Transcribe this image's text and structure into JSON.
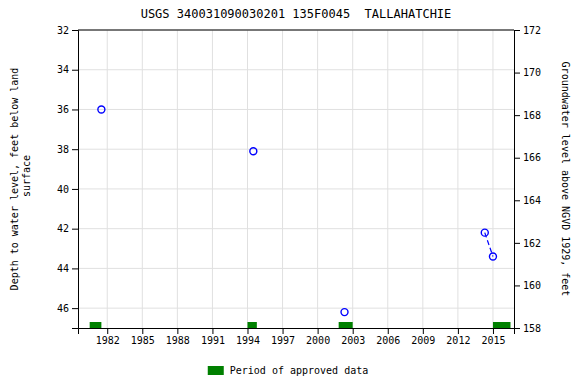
{
  "chart_data": {
    "type": "scatter",
    "title": "USGS 340031090030201 135F0045  TALLAHATCHIE",
    "y_label": "Depth to water level, feet below land\n surface",
    "y2_label": "Groundwater level above NGVD 1929, feet",
    "xlim": [
      1979.5,
      2016.8
    ],
    "xticks": [
      1982,
      1985,
      1988,
      1991,
      1994,
      1997,
      2000,
      2003,
      2006,
      2009,
      2012,
      2015
    ],
    "ylim": [
      47,
      32
    ],
    "yticks": [
      32,
      34,
      36,
      38,
      40,
      42,
      44,
      46
    ],
    "y2lim": [
      158,
      172
    ],
    "y2ticks": [
      172,
      170,
      168,
      166,
      164,
      162,
      160,
      158
    ],
    "grid": true,
    "legend": "bottom",
    "series": [
      {
        "type": "scatter",
        "marker": "circle",
        "color": "#0000FF",
        "x": [
          1981.5,
          1994.5,
          2002.3,
          2014.3,
          2015.0
        ],
        "values": [
          36.0,
          38.1,
          46.2,
          42.2,
          43.4
        ]
      },
      {
        "type": "line",
        "line_style": "dashed",
        "color": "#0000FF",
        "x": [
          2014.3,
          2015.0
        ],
        "values": [
          42.2,
          43.4
        ]
      },
      {
        "type": "period",
        "name": "Period of approved data",
        "color": "#008000",
        "x_start": [
          1980.5,
          1994.0,
          2001.8,
          2015.0
        ],
        "x_end": [
          1981.5,
          1994.8,
          2003.0,
          2016.5
        ]
      }
    ]
  }
}
